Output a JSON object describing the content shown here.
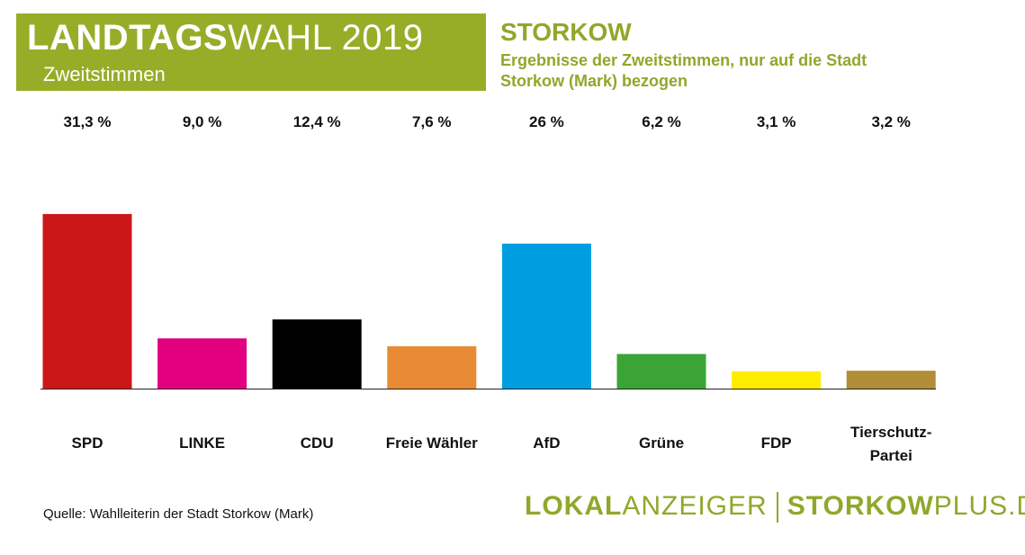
{
  "chart_data": {
    "type": "bar",
    "title_parts": [
      "LANDTAGS",
      "WAHL 2019"
    ],
    "subtitle": "Zweitstimmen",
    "heading": "STORKOW",
    "description": [
      "Ergebnisse der Zweitstimmen, nur auf die Stadt",
      "Storkow (Mark) bezogen"
    ],
    "categories": [
      "SPD",
      "LINKE",
      "CDU",
      "Freie Wähler",
      "AfD",
      "Grüne",
      "FDP",
      "Tierschutz-Partei"
    ],
    "values": [
      31.3,
      9.0,
      12.4,
      7.6,
      26,
      6.2,
      3.1,
      3.2
    ],
    "value_labels": [
      "31,3 %",
      "9,0 %",
      "12,4 %",
      "7,6 %",
      "26 %",
      "6,2 %",
      "3,1 %",
      "3,2 %"
    ],
    "colors": [
      "#cc1719",
      "#e3007f",
      "#000000",
      "#e88b34",
      "#009ee0",
      "#3aa535",
      "#ffed00",
      "#b08d36"
    ],
    "source": "Quelle: Wahlleiterin der Stadt Storkow (Mark)",
    "brand": [
      [
        "LOKAL",
        "ANZEIGER"
      ],
      [
        "STORKOW",
        "PLUS.DE"
      ]
    ]
  }
}
